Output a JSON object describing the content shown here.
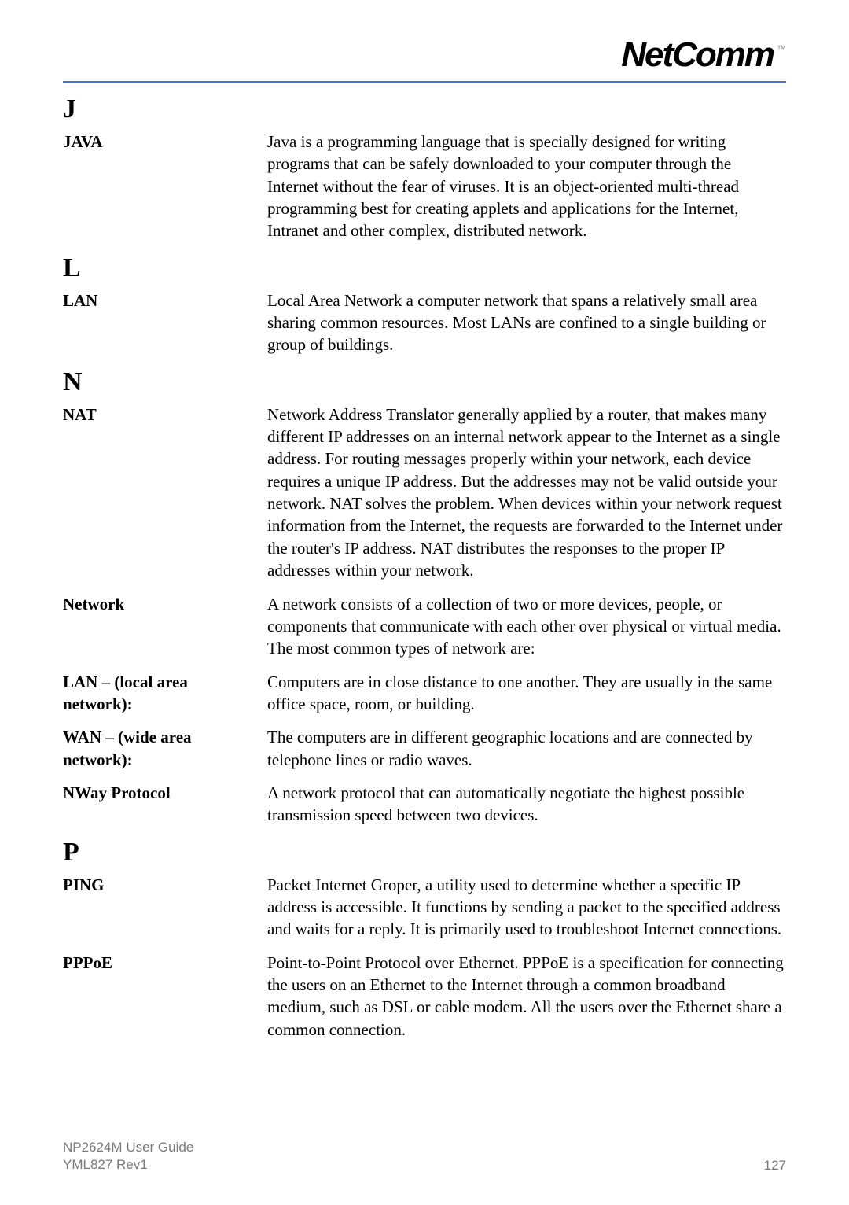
{
  "header": {
    "logo_text": "NetComm",
    "logo_tm": "™"
  },
  "divider": {
    "color": "#4a7ab8",
    "height": 3
  },
  "sections": {
    "J": {
      "letter": "J",
      "entries": [
        {
          "term": "JAVA",
          "definition": "Java is a programming language that is specially designed for writing programs that can be safely downloaded to your computer through the Internet without the fear of viruses. It is an object-oriented multi-thread programming best for creating applets and applications for the Internet, Intranet and other complex, distributed network."
        }
      ]
    },
    "L": {
      "letter": "L",
      "entries": [
        {
          "term": "LAN",
          "definition": "Local Area Network a computer network that spans a relatively small area sharing common resources. Most LANs are confined to a single building or group of buildings."
        }
      ]
    },
    "N": {
      "letter": "N",
      "entries": [
        {
          "term": "NAT",
          "definition": "Network Address Translator generally applied by a router, that makes many different IP addresses on an internal network appear to the Internet as a single address. For routing messages properly within your network, each device requires a unique IP address. But the addresses may not be valid outside your network. NAT solves the problem. When devices within your network request information from the Internet, the requests are forwarded to the Internet under the router's IP address. NAT distributes the responses to the proper IP addresses within your network."
        },
        {
          "term": "Network",
          "definition": "A network consists of a collection of two or more devices, people, or components that communicate with each other over physical or virtual media.  The most common types of network are:"
        },
        {
          "term": "LAN – (local area network):",
          "definition": "Computers are in close distance to one another.  They are usually in the same office space, room, or building."
        },
        {
          "term": "WAN – (wide area network):",
          "definition": "The computers are in different geographic locations and are connected by telephone lines or radio waves."
        },
        {
          "term": "NWay Protocol",
          "definition": "A network protocol that can automatically negotiate the highest possible transmission speed between two devices."
        }
      ]
    },
    "P": {
      "letter": "P",
      "entries": [
        {
          "term": "PING",
          "definition": "Packet Internet Groper, a utility used to determine whether a specific IP address is accessible. It functions by sending a packet to the specified address and waits for a reply. It is primarily used to troubleshoot Internet connections."
        },
        {
          "term": "PPPoE",
          "definition": "Point-to-Point Protocol over Ethernet. PPPoE is a specification for connecting the users on an Ethernet to the Internet through a common broadband medium, such as DSL or cable modem. All the users over the Ethernet share a common connection."
        }
      ]
    }
  },
  "footer": {
    "guide_line1": "NP2624M User Guide",
    "guide_line2": "YML827 Rev1",
    "page_number": "127"
  },
  "typography": {
    "body_font": "Times New Roman",
    "footer_font": "Arial",
    "section_letter_size": 34,
    "term_size": 21,
    "definition_size": 21,
    "footer_size": 17
  },
  "colors": {
    "text": "#000000",
    "footer_text": "#7a7a7a",
    "divider": "#4a7ab8",
    "background": "#ffffff"
  }
}
